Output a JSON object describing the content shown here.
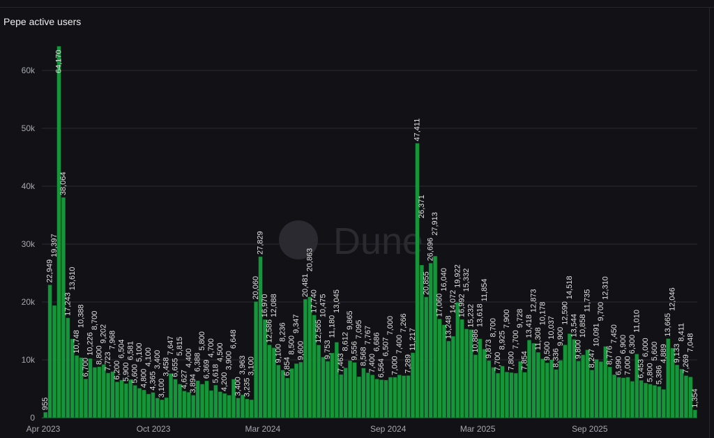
{
  "chart_data": {
    "type": "bar",
    "title": "Pepe active users",
    "xlabel": "",
    "ylabel": "",
    "ylim": [
      0,
      65000
    ],
    "yticks": [
      "0",
      "10k",
      "20k",
      "30k",
      "40k",
      "50k",
      "60k"
    ],
    "xticks": [
      "Apr 2023",
      "Oct 2023",
      "Mar 2024",
      "Sep 2024",
      "Mar 2025",
      "Sep 2025"
    ],
    "grid": true,
    "bar_color": "#15963a",
    "watermark": "Dune",
    "values": [
      955,
      22949,
      19397,
      64170,
      38064,
      17243,
      13610,
      10748,
      10388,
      6700,
      10226,
      8700,
      8800,
      9202,
      7723,
      7968,
      6200,
      6504,
      5900,
      6581,
      5600,
      5100,
      4800,
      4100,
      4365,
      3400,
      3100,
      3458,
      7647,
      6655,
      5815,
      4627,
      4400,
      3894,
      6388,
      5800,
      6369,
      4700,
      5618,
      4500,
      4200,
      3900,
      6648,
      3400,
      3963,
      3235,
      3100,
      20060,
      27829,
      16970,
      12586,
      12088,
      9100,
      8236,
      6854,
      8500,
      9347,
      9600,
      20481,
      20863,
      17740,
      12565,
      10475,
      9753,
      11180,
      13045,
      7463,
      8612,
      9865,
      9556,
      7095,
      8568,
      7767,
      7400,
      6686,
      6564,
      6507,
      7000,
      7000,
      7400,
      7266,
      7289,
      11217,
      47411,
      26371,
      20855,
      26696,
      27913,
      17060,
      16040,
      13248,
      14072,
      19922,
      16992,
      15332,
      15232,
      10886,
      13618,
      11854,
      9873,
      8700,
      7700,
      8925,
      7900,
      7800,
      7700,
      9728,
      7854,
      13418,
      12873,
      11308,
      10178,
      9500,
      10037,
      8336,
      9900,
      12590,
      14518,
      13544,
      9800,
      10858,
      11735,
      8247,
      10091,
      9700,
      12310,
      8776,
      7450,
      6990,
      6900,
      7000,
      6300,
      11010,
      6453,
      6000,
      5800,
      5600,
      5386,
      4889,
      13665,
      12046,
      9133,
      8411,
      7269,
      7048,
      1354
    ]
  }
}
